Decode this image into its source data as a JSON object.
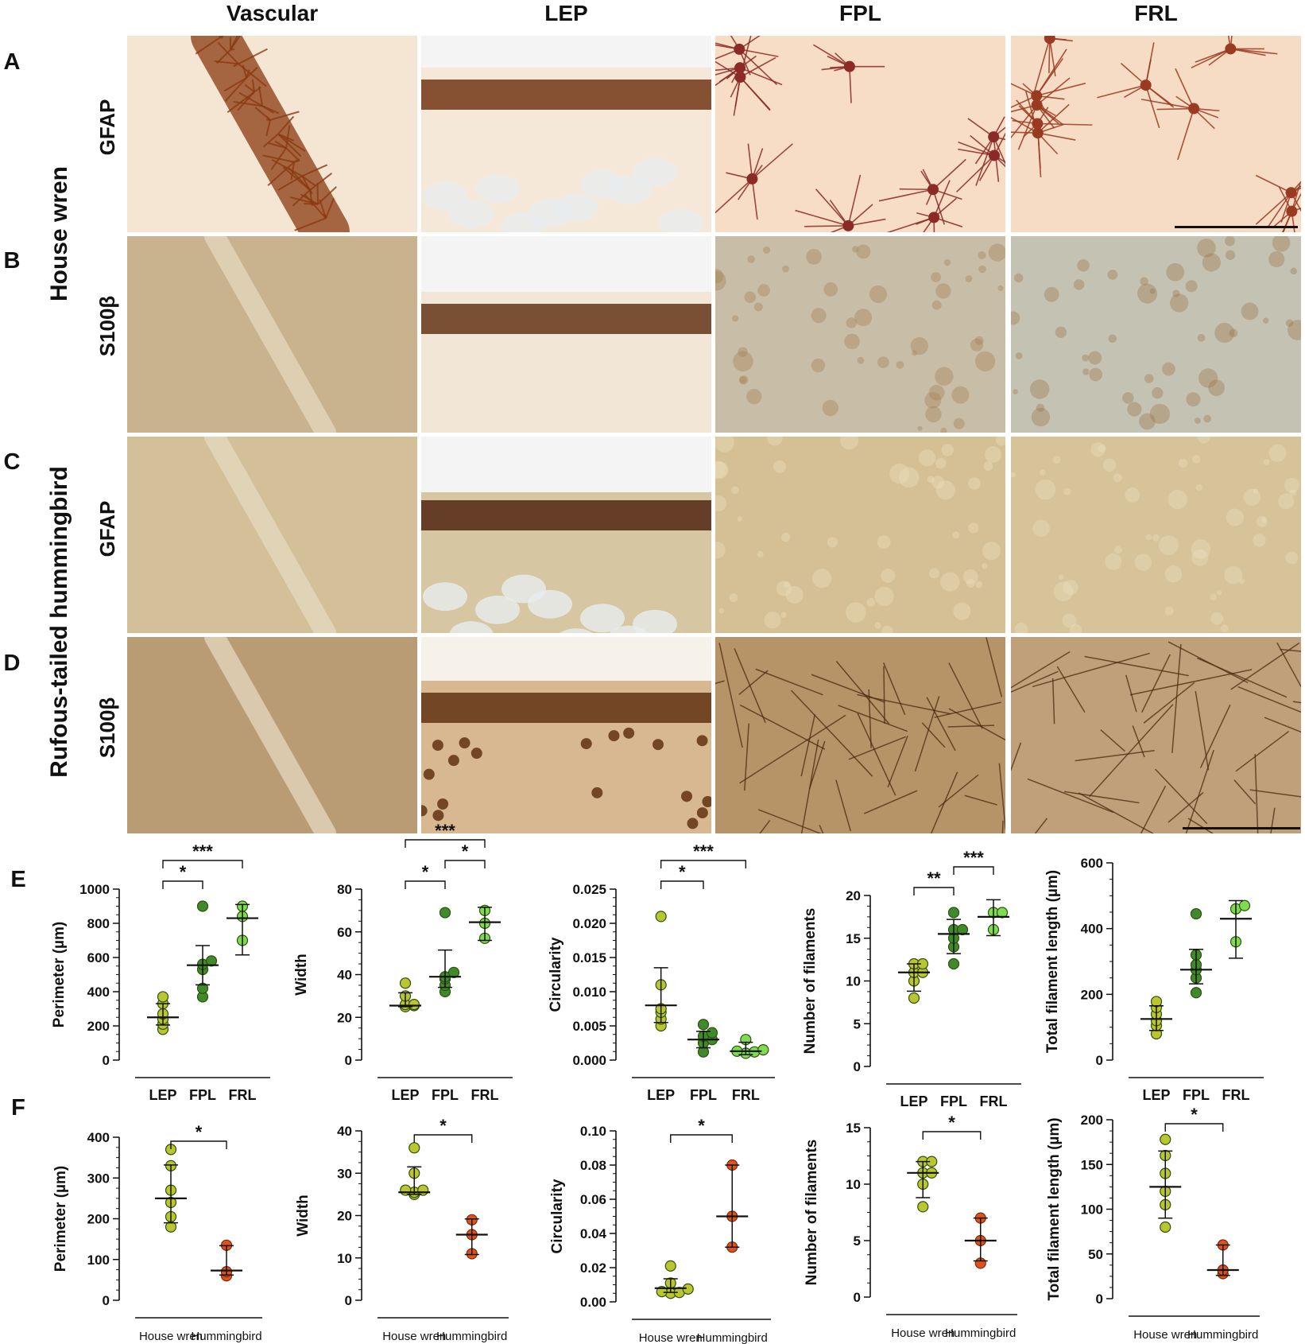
{
  "micrograph": {
    "column_headers": [
      "Vascular",
      "LEP",
      "FPL",
      "FRL"
    ],
    "row_letters": [
      "A",
      "B",
      "C",
      "D"
    ],
    "stains": [
      "GFAP",
      "S100β",
      "GFAP",
      "S100β"
    ],
    "species": [
      "House wren",
      "Rufous-tailed hummingbird"
    ]
  },
  "panel_letters": {
    "E": "E",
    "F": "F"
  },
  "colors": {
    "LEP": "#b9c62f",
    "FPL": "#3f8a2a",
    "FRL": "#7fdc50",
    "HouseWren": "#b9c62f",
    "Hummingbird": "#e0521d",
    "marker_stroke": "#2f4f10"
  },
  "chart_data": [
    {
      "panel": "E",
      "type": "scatter",
      "ylabel": "Perimeter (µm)",
      "categories": [
        "LEP",
        "FPL",
        "FRL"
      ],
      "ylim": [
        0,
        1000
      ],
      "yticks": [
        0,
        200,
        400,
        600,
        800,
        1000
      ],
      "points": [
        [
          180,
          210,
          240,
          270,
          330,
          370
        ],
        [
          370,
          420,
          530,
          560,
          580,
          900
        ],
        [
          700,
          840,
          900
        ]
      ],
      "center": [
        250,
        555,
        830
      ],
      "err_low": [
        205,
        440,
        615
      ],
      "err_high": [
        330,
        670,
        910
      ],
      "sig": [
        {
          "from": 0,
          "to": 1,
          "label": "*"
        },
        {
          "from": 0,
          "to": 2,
          "label": "***"
        }
      ]
    },
    {
      "panel": "E",
      "type": "scatter",
      "ylabel": "Width",
      "categories": [
        "LEP",
        "FPL",
        "FRL"
      ],
      "ylim": [
        0,
        80
      ],
      "yticks": [
        0,
        20,
        40,
        60,
        80
      ],
      "points": [
        [
          25,
          25.5,
          26,
          26,
          30,
          36
        ],
        [
          32,
          35,
          38,
          39,
          41,
          69
        ],
        [
          57,
          64,
          70
        ]
      ],
      "center": [
        25.5,
        39,
        64.5
      ],
      "err_low": [
        25,
        34,
        56
      ],
      "err_high": [
        31.5,
        51.5,
        71.5
      ],
      "sig": [
        {
          "from": 0,
          "to": 1,
          "label": "*"
        },
        {
          "from": 1,
          "to": 2,
          "label": "*"
        },
        {
          "from": 0,
          "to": 2,
          "label": "***"
        }
      ]
    },
    {
      "panel": "E",
      "type": "scatter",
      "ylabel": "Circularity",
      "categories": [
        "LEP",
        "FPL",
        "FRL"
      ],
      "ylim": [
        0,
        0.025
      ],
      "yticks": [
        0.0,
        0.005,
        0.01,
        0.015,
        0.02,
        0.025
      ],
      "ytick_labels": [
        "0.000",
        "0.005",
        "0.010",
        "0.015",
        "0.020",
        "0.025"
      ],
      "points": [
        [
          0.005,
          0.006,
          0.007,
          0.0075,
          0.011,
          0.021
        ],
        [
          0.0012,
          0.0025,
          0.003,
          0.0035,
          0.004,
          0.0052
        ],
        [
          0.001,
          0.0012,
          0.0013,
          0.0015,
          0.003
        ]
      ],
      "center": [
        0.008,
        0.003,
        0.0013
      ],
      "err_low": [
        0.0055,
        0.0018,
        0.0008
      ],
      "err_high": [
        0.0135,
        0.0042,
        0.0026
      ],
      "sig": [
        {
          "from": 0,
          "to": 1,
          "label": "*"
        },
        {
          "from": 0,
          "to": 2,
          "label": "***"
        }
      ]
    },
    {
      "panel": "E",
      "type": "scatter",
      "ylabel": "Number of filaments",
      "categories": [
        "LEP",
        "FPL",
        "FRL"
      ],
      "ylim": [
        0,
        20
      ],
      "yticks": [
        0,
        5,
        10,
        15,
        20
      ],
      "points": [
        [
          8,
          10,
          11,
          11,
          12,
          12
        ],
        [
          12,
          14,
          15,
          16,
          16,
          18
        ],
        [
          16,
          18,
          18
        ]
      ],
      "center": [
        11,
        15.5,
        17.5
      ],
      "err_low": [
        8.8,
        13.2,
        15.3
      ],
      "err_high": [
        12,
        17.2,
        19.5
      ],
      "sig": [
        {
          "from": 0,
          "to": 1,
          "label": "**"
        },
        {
          "from": 1,
          "to": 2,
          "label": "***"
        }
      ]
    },
    {
      "panel": "E",
      "type": "scatter",
      "ylabel": "Total filament length (µm)",
      "categories": [
        "LEP",
        "FPL",
        "FRL"
      ],
      "ylim": [
        0,
        600
      ],
      "yticks": [
        0,
        200,
        400,
        600
      ],
      "points": [
        [
          80,
          105,
          120,
          140,
          160,
          178
        ],
        [
          205,
          250,
          275,
          290,
          320,
          445
        ],
        [
          360,
          460,
          470
        ]
      ],
      "center": [
        125,
        275,
        430
      ],
      "err_low": [
        90,
        232,
        310
      ],
      "err_high": [
        165,
        337,
        485
      ],
      "sig": []
    },
    {
      "panel": "F",
      "type": "scatter",
      "ylabel": "Perimeter (µm)",
      "categories": [
        "House wren",
        "Hummingbird"
      ],
      "ylim": [
        0,
        400
      ],
      "yticks": [
        0,
        100,
        200,
        300,
        400
      ],
      "points": [
        [
          180,
          205,
          240,
          270,
          330,
          370
        ],
        [
          60,
          70,
          135
        ]
      ],
      "center": [
        250,
        73
      ],
      "err_low": [
        190,
        62
      ],
      "err_high": [
        332,
        134
      ],
      "sig": [
        {
          "from": 0,
          "to": 1,
          "label": "*"
        }
      ]
    },
    {
      "panel": "F",
      "type": "scatter",
      "ylabel": "Width",
      "categories": [
        "House wren",
        "Hummingbird"
      ],
      "ylim": [
        0,
        40
      ],
      "yticks": [
        0,
        10,
        20,
        30,
        40
      ],
      "points": [
        [
          25,
          25.5,
          26,
          26,
          30,
          36
        ],
        [
          11,
          15.5,
          19
        ]
      ],
      "center": [
        25.5,
        15.5
      ],
      "err_low": [
        25,
        10.8
      ],
      "err_high": [
        31.5,
        19.2
      ],
      "sig": [
        {
          "from": 0,
          "to": 1,
          "label": "*"
        }
      ]
    },
    {
      "panel": "F",
      "type": "scatter",
      "ylabel": "Circularity",
      "categories": [
        "House wren",
        "Hummingbird"
      ],
      "ylim": [
        0,
        0.1
      ],
      "yticks": [
        0.0,
        0.02,
        0.04,
        0.06,
        0.08,
        0.1
      ],
      "ytick_labels": [
        "0.00",
        "0.02",
        "0.04",
        "0.06",
        "0.08",
        "0.10"
      ],
      "points": [
        [
          0.005,
          0.0055,
          0.006,
          0.0075,
          0.011,
          0.021
        ],
        [
          0.032,
          0.05,
          0.08
        ]
      ],
      "center": [
        0.008,
        0.05
      ],
      "err_low": [
        0.0055,
        0.032
      ],
      "err_high": [
        0.0135,
        0.08
      ],
      "sig": [
        {
          "from": 0,
          "to": 1,
          "label": "*"
        }
      ]
    },
    {
      "panel": "F",
      "type": "scatter",
      "ylabel": "Number of filaments",
      "categories": [
        "House wren",
        "Hummingbird"
      ],
      "ylim": [
        0,
        15
      ],
      "yticks": [
        0,
        5,
        10,
        15
      ],
      "points": [
        [
          8,
          10,
          11,
          11,
          12,
          12
        ],
        [
          3,
          5,
          7
        ]
      ],
      "center": [
        11,
        5
      ],
      "err_low": [
        8.8,
        3.2
      ],
      "err_high": [
        12,
        7
      ],
      "sig": [
        {
          "from": 0,
          "to": 1,
          "label": "*"
        }
      ]
    },
    {
      "panel": "F",
      "type": "scatter",
      "ylabel": "Total filament length (µm)",
      "categories": [
        "House wren",
        "Hummingbird"
      ],
      "ylim": [
        0,
        200
      ],
      "yticks": [
        0,
        50,
        100,
        150,
        200
      ],
      "points": [
        [
          80,
          105,
          120,
          140,
          160,
          178
        ],
        [
          28,
          32,
          60
        ]
      ],
      "center": [
        125,
        32
      ],
      "err_low": [
        90,
        26
      ],
      "err_high": [
        165,
        60
      ],
      "sig": [
        {
          "from": 0,
          "to": 1,
          "label": "*"
        }
      ]
    }
  ]
}
